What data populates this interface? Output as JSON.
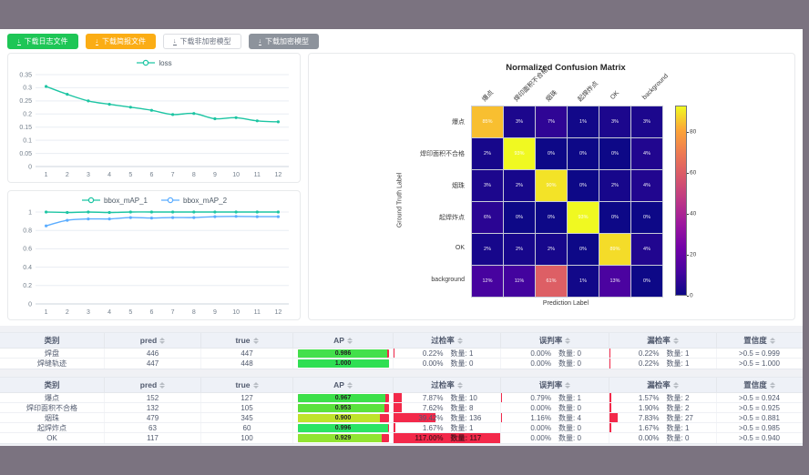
{
  "window": {
    "chrome_color": "#7b7380"
  },
  "toolbar": {
    "buttons": [
      {
        "label": "下载日志文件",
        "style": "success"
      },
      {
        "label": "下载简报文件",
        "style": "warning"
      },
      {
        "label": "下载非加密模型",
        "style": "default"
      },
      {
        "label": "下载加密模型",
        "style": "info"
      }
    ]
  },
  "chart_data": [
    {
      "type": "line",
      "title": "loss",
      "legend": [
        "loss"
      ],
      "legend_position": "top",
      "x": [
        1,
        2,
        3,
        4,
        5,
        6,
        7,
        8,
        9,
        10,
        11,
        12
      ],
      "series": [
        {
          "name": "loss",
          "color": "#1dc5a3",
          "values": [
            0.305,
            0.275,
            0.25,
            0.237,
            0.226,
            0.214,
            0.198,
            0.202,
            0.182,
            0.186,
            0.174,
            0.17
          ]
        }
      ],
      "ylim": [
        0,
        0.35
      ],
      "yticks": [
        0,
        0.05,
        0.1,
        0.15,
        0.2,
        0.25,
        0.3,
        0.35
      ],
      "grid": true
    },
    {
      "type": "line",
      "title": "bbox_mAP",
      "legend": [
        "bbox_mAP_1",
        "bbox_mAP_2"
      ],
      "legend_position": "top",
      "x": [
        1,
        2,
        3,
        4,
        5,
        6,
        7,
        8,
        9,
        10,
        11,
        12
      ],
      "series": [
        {
          "name": "bbox_mAP_1",
          "color": "#1dc5a3",
          "values": [
            1,
            0.995,
            1,
            0.995,
            1,
            1,
            1,
            1,
            1,
            1,
            1,
            1
          ]
        },
        {
          "name": "bbox_mAP_2",
          "color": "#5cadff",
          "values": [
            0.85,
            0.91,
            0.925,
            0.925,
            0.94,
            0.935,
            0.94,
            0.94,
            0.95,
            0.952,
            0.95,
            0.95
          ]
        }
      ],
      "ylim": [
        0,
        1
      ],
      "yticks": [
        0,
        0.2,
        0.4,
        0.6,
        0.8,
        1
      ],
      "grid": true
    },
    {
      "type": "heatmap",
      "title": "Normalized Confusion Matrix",
      "xlabel": "Prediction Label",
      "ylabel": "Ground Truth Label",
      "categories": [
        "爆点",
        "焊印面积不合格",
        "烟珠",
        "起焊炸点",
        "OK",
        "background"
      ],
      "matrix_percent": [
        [
          85,
          3,
          7,
          1,
          3,
          3
        ],
        [
          2,
          93,
          0,
          0,
          0,
          4
        ],
        [
          3,
          2,
          90,
          0,
          2,
          4
        ],
        [
          6,
          0,
          0,
          93,
          0,
          0
        ],
        [
          2,
          2,
          2,
          0,
          89,
          4
        ],
        [
          12,
          11,
          61,
          1,
          13,
          0
        ]
      ],
      "colorbar": {
        "colormap": "plasma",
        "ticks": [
          0,
          20,
          40,
          60,
          80
        ],
        "vmin": 0,
        "vmax": 93
      },
      "legend_position": "right"
    }
  ],
  "tables": [
    {
      "columns": [
        {
          "label": "类别",
          "sortable": false
        },
        {
          "label": "pred",
          "sortable": true
        },
        {
          "label": "true",
          "sortable": true
        },
        {
          "label": "AP",
          "sortable": true
        },
        {
          "label": "过检率",
          "sortable": true
        },
        {
          "label": "误判率",
          "sortable": true
        },
        {
          "label": "漏检率",
          "sortable": true
        },
        {
          "label": "置信度",
          "sortable": true
        }
      ],
      "rows": [
        {
          "cls": "焊盘",
          "pred": "446",
          "true": "447",
          "ap": "0.986",
          "ap_value": 0.986,
          "ap_color": "#43e04b",
          "overkill": {
            "pct": "0.22%",
            "count": "数量: 1",
            "bar": 0.22
          },
          "misjudge": {
            "pct": "0.00%",
            "count": "数量: 0",
            "bar": 0
          },
          "miss": {
            "pct": "0.22%",
            "count": "数量: 1",
            "bar": 0.22
          },
          "confidence": ">0.5 = 0.999"
        },
        {
          "cls": "焊缝轨迹",
          "pred": "447",
          "true": "448",
          "ap": "1.000",
          "ap_value": 1.0,
          "ap_color": "#2fdf53",
          "overkill": {
            "pct": "0.00%",
            "count": "数量: 0",
            "bar": 0
          },
          "misjudge": {
            "pct": "0.00%",
            "count": "数量: 0",
            "bar": 0
          },
          "miss": {
            "pct": "0.22%",
            "count": "数量: 1",
            "bar": 0.22
          },
          "confidence": ">0.5 = 1.000"
        }
      ]
    },
    {
      "columns": [
        {
          "label": "类别",
          "sortable": false
        },
        {
          "label": "pred",
          "sortable": true
        },
        {
          "label": "true",
          "sortable": true
        },
        {
          "label": "AP",
          "sortable": true
        },
        {
          "label": "过检率",
          "sortable": true
        },
        {
          "label": "误判率",
          "sortable": true
        },
        {
          "label": "漏检率",
          "sortable": true
        },
        {
          "label": "置信度",
          "sortable": true
        }
      ],
      "rows": [
        {
          "cls": "爆点",
          "pred": "152",
          "true": "127",
          "ap": "0.967",
          "ap_value": 0.967,
          "ap_color": "#3ce049",
          "overkill": {
            "pct": "7.87%",
            "count": "数量: 10",
            "bar": 7.87
          },
          "misjudge": {
            "pct": "0.79%",
            "count": "数量: 1",
            "bar": 0.79
          },
          "miss": {
            "pct": "1.57%",
            "count": "数量: 2",
            "bar": 1.57
          },
          "confidence": ">0.5 = 0.924"
        },
        {
          "cls": "焊印面积不合格",
          "pred": "132",
          "true": "105",
          "ap": "0.953",
          "ap_value": 0.953,
          "ap_color": "#5ae13c",
          "overkill": {
            "pct": "7.62%",
            "count": "数量: 8",
            "bar": 7.62
          },
          "misjudge": {
            "pct": "0.00%",
            "count": "数量: 0",
            "bar": 0
          },
          "miss": {
            "pct": "1.90%",
            "count": "数量: 2",
            "bar": 1.9
          },
          "confidence": ">0.5 = 0.925"
        },
        {
          "cls": "烟珠",
          "pred": "479",
          "true": "345",
          "ap": "0.900",
          "ap_value": 0.9,
          "ap_color": "#bfe32b",
          "overkill": {
            "pct": "39.42%",
            "count": "数量: 136",
            "bar": 39.42
          },
          "misjudge": {
            "pct": "1.16%",
            "count": "数量: 4",
            "bar": 1.16
          },
          "miss": {
            "pct": "7.83%",
            "count": "数量: 27",
            "bar": 7.83
          },
          "confidence": ">0.5 = 0.881"
        },
        {
          "cls": "起焊炸点",
          "pred": "63",
          "true": "60",
          "ap": "0.996",
          "ap_value": 0.996,
          "ap_color": "#2ae464",
          "overkill": {
            "pct": "1.67%",
            "count": "数量: 1",
            "bar": 1.67
          },
          "misjudge": {
            "pct": "0.00%",
            "count": "数量: 0",
            "bar": 0
          },
          "miss": {
            "pct": "1.67%",
            "count": "数量: 1",
            "bar": 1.67
          },
          "confidence": ">0.5 = 0.985"
        },
        {
          "cls": "OK",
          "pred": "117",
          "true": "100",
          "ap": "0.929",
          "ap_value": 0.929,
          "ap_color": "#90e432",
          "overkill": {
            "pct": "117.00%",
            "count": "数量: 117",
            "bar": 117
          },
          "misjudge": {
            "pct": "0.00%",
            "count": "数量: 0",
            "bar": 0
          },
          "miss": {
            "pct": "0.00%",
            "count": "数量: 0",
            "bar": 0
          },
          "confidence": ">0.5 = 0.940"
        }
      ]
    }
  ],
  "colors": {
    "button_success": "#1ec656",
    "button_warning": "#fbad15",
    "button_info": "#8d939c",
    "line_teal": "#1dc5a3",
    "line_blue": "#5cadff",
    "ap_remainder_red": "#f3294a",
    "metric_bar_red": "#f3294a",
    "table_header_bg": "#eef1f7"
  }
}
